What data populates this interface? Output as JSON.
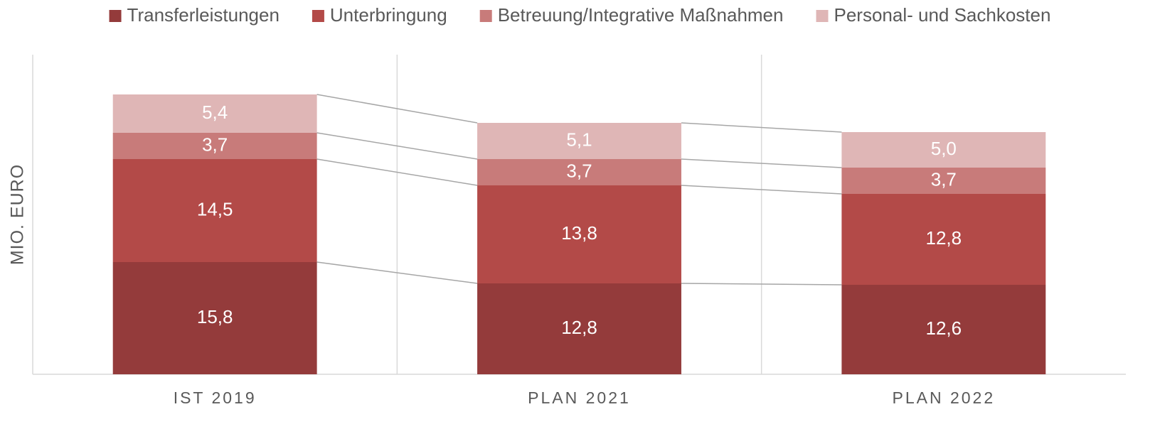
{
  "chart_data": {
    "type": "stacked_bar",
    "ylabel": "MIO. EURO",
    "categories": [
      "IST 2019",
      "PLAN 2021",
      "PLAN 2022"
    ],
    "series": [
      {
        "name": "Transferleistungen",
        "color": "#943b3b",
        "values": [
          15.8,
          12.8,
          12.6
        ],
        "value_labels": [
          "15,8",
          "12,8",
          "12,6"
        ]
      },
      {
        "name": "Unterbringung",
        "color": "#b34a48",
        "values": [
          14.5,
          13.8,
          12.8
        ],
        "value_labels": [
          "14,5",
          "13,8",
          "12,8"
        ]
      },
      {
        "name": "Betreuung/Integrative Maßnahmen",
        "color": "#c87b7a",
        "values": [
          3.7,
          3.7,
          3.7
        ],
        "value_labels": [
          "3,7",
          "3,7",
          "3,7"
        ]
      },
      {
        "name": "Personal- und Sachkosten",
        "color": "#dfb6b6",
        "values": [
          5.4,
          5.1,
          5.0
        ],
        "value_labels": [
          "5,4",
          "5,1",
          "5,0"
        ]
      }
    ],
    "ylim": [
      0,
      45
    ],
    "legend": "top",
    "series_lines": true
  }
}
